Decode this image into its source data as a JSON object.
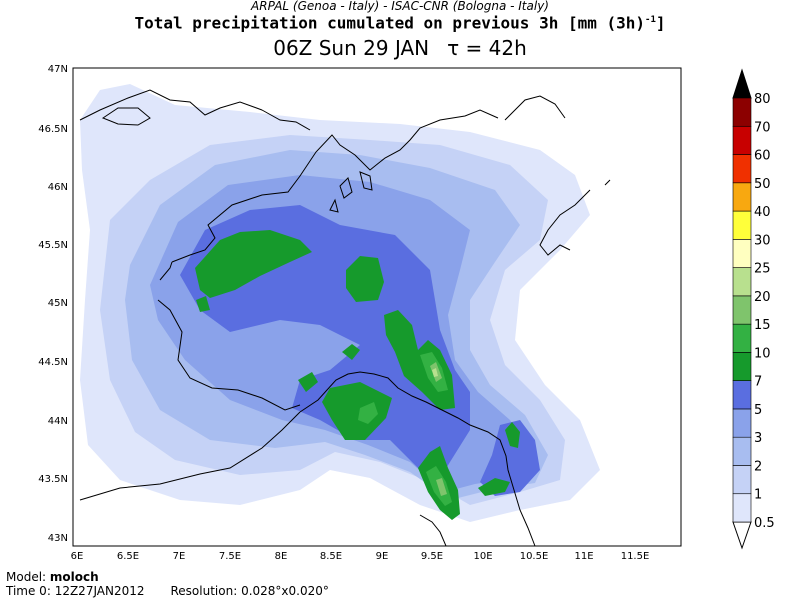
{
  "header": {
    "credit": "ARPAL (Genoa - Italy)  -  ISAC-CNR (Bologna - Italy)",
    "title": "Total precipitation cumulated on previous 3h [mm (3h)",
    "title_sup": "-1",
    "title_end": "]",
    "time": "06Z Sun 29 JAN",
    "tau": "τ = 42h"
  },
  "map": {
    "lat_labels": [
      "47N",
      "46.5N",
      "46N",
      "45.5N",
      "45N",
      "44.5N",
      "44N",
      "43.5N",
      "43N"
    ],
    "lon_labels": [
      "6E",
      "6.5E",
      "7E",
      "7.5E",
      "8E",
      "8.5E",
      "9E",
      "9.5E",
      "10E",
      "10.5E",
      "11E",
      "11.5E"
    ]
  },
  "colorbar": {
    "levels": [
      "0.5",
      "1",
      "2",
      "3",
      "5",
      "7",
      "10",
      "15",
      "20",
      "25",
      "30",
      "40",
      "50",
      "60",
      "70",
      "80"
    ],
    "colors": [
      "#ffffff",
      "#dfe6fb",
      "#c5d2f6",
      "#a8bdf0",
      "#8aa2ea",
      "#5a6ee0",
      "#169a2c",
      "#33b143",
      "#7fc46c",
      "#b8e08e",
      "#ffffc0",
      "#ffff3a",
      "#f8a810",
      "#f03000",
      "#c80000",
      "#8c0000",
      "#000000"
    ]
  },
  "footer": {
    "model_label": "Model:",
    "model_value": "moloch",
    "time0_label": "Time 0:",
    "time0_value": "12Z27JAN2012",
    "resolution_label": "Resolution:",
    "resolution_value": "0.028°x0.020°"
  }
}
